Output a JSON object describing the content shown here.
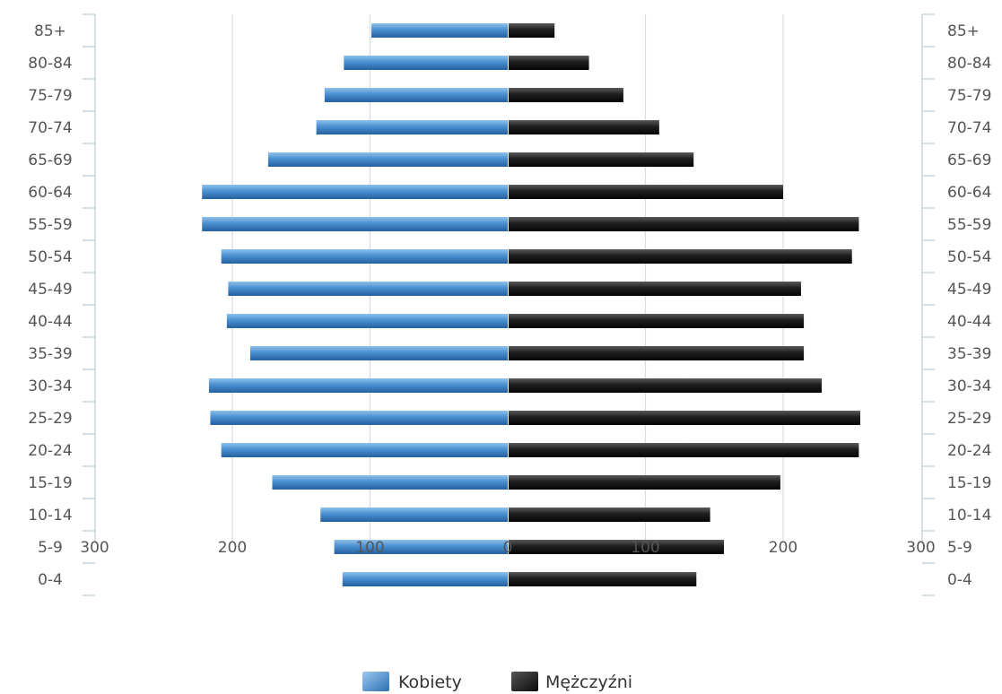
{
  "chart_data": {
    "type": "bar",
    "orientation": "horizontal",
    "layout": "population-pyramid",
    "title": "",
    "xlabel": "",
    "ylabel": "",
    "categories": [
      "0-4",
      "5-9",
      "10-14",
      "15-19",
      "20-24",
      "25-29",
      "30-34",
      "35-39",
      "40-44",
      "45-49",
      "50-54",
      "55-59",
      "60-64",
      "65-69",
      "70-74",
      "75-79",
      "80-84",
      "85+"
    ],
    "series": [
      {
        "name": "Kobiety",
        "side": "left",
        "color": "#3f84c6",
        "values": [
          120,
          126,
          136,
          171,
          208,
          216,
          217,
          187,
          204,
          203,
          208,
          222,
          222,
          174,
          139,
          133,
          119,
          99
        ]
      },
      {
        "name": "Mężczyźni",
        "side": "right",
        "color": "#1a1a1a",
        "values": [
          137,
          157,
          147,
          198,
          255,
          256,
          228,
          215,
          215,
          213,
          250,
          255,
          200,
          135,
          110,
          84,
          59,
          34
        ]
      }
    ],
    "xlim": [
      -300,
      300
    ],
    "x_ticks": [
      {
        "value": -300,
        "label": "300"
      },
      {
        "value": -200,
        "label": "200"
      },
      {
        "value": -100,
        "label": "100"
      },
      {
        "value": 0,
        "label": "0"
      },
      {
        "value": 100,
        "label": "100"
      },
      {
        "value": 200,
        "label": "200"
      },
      {
        "value": 300,
        "label": "300"
      }
    ],
    "grid": "vertical",
    "legend_position": "bottom-center",
    "category_axes": "left-and-right"
  }
}
